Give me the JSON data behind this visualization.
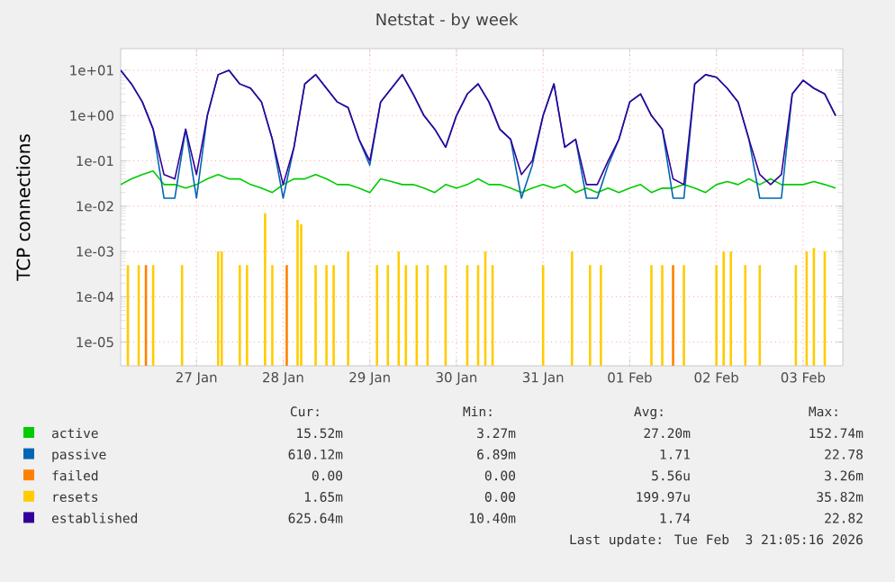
{
  "chart_data": {
    "type": "line",
    "title": "Netstat - by week",
    "ylabel": "TCP connections",
    "log": true,
    "grid": true,
    "legend": "bottom",
    "ylim": [
      3e-06,
      30
    ],
    "yticks": [
      {
        "value": 1e-05,
        "label": "1e-05"
      },
      {
        "value": 0.0001,
        "label": "1e-04"
      },
      {
        "value": 0.001,
        "label": "1e-03"
      },
      {
        "value": 0.01,
        "label": "1e-02"
      },
      {
        "value": 0.1,
        "label": "1e-01"
      },
      {
        "value": 1,
        "label": "1e+00"
      },
      {
        "value": 10,
        "label": "1e+01"
      }
    ],
    "xlim": [
      "2026-01-26T03:00",
      "2026-02-03T11:00"
    ],
    "xticks": [
      {
        "value": "2026-01-27T00:00",
        "label": "27 Jan"
      },
      {
        "value": "2026-01-28T00:00",
        "label": "28 Jan"
      },
      {
        "value": "2026-01-29T00:00",
        "label": "29 Jan"
      },
      {
        "value": "2026-01-30T00:00",
        "label": "30 Jan"
      },
      {
        "value": "2026-01-31T00:00",
        "label": "31 Jan"
      },
      {
        "value": "2026-02-01T00:00",
        "label": "01 Feb"
      },
      {
        "value": "2026-02-02T00:00",
        "label": "02 Feb"
      },
      {
        "value": "2026-02-03T00:00",
        "label": "03 Feb"
      }
    ],
    "x": [
      "2026-01-26T03:00",
      "2026-01-26T06:00",
      "2026-01-26T09:00",
      "2026-01-26T12:00",
      "2026-01-26T15:00",
      "2026-01-26T18:00",
      "2026-01-26T21:00",
      "2026-01-27T00:00",
      "2026-01-27T03:00",
      "2026-01-27T06:00",
      "2026-01-27T09:00",
      "2026-01-27T12:00",
      "2026-01-27T15:00",
      "2026-01-27T18:00",
      "2026-01-27T21:00",
      "2026-01-28T00:00",
      "2026-01-28T03:00",
      "2026-01-28T06:00",
      "2026-01-28T09:00",
      "2026-01-28T12:00",
      "2026-01-28T15:00",
      "2026-01-28T18:00",
      "2026-01-28T21:00",
      "2026-01-29T00:00",
      "2026-01-29T03:00",
      "2026-01-29T06:00",
      "2026-01-29T09:00",
      "2026-01-29T12:00",
      "2026-01-29T15:00",
      "2026-01-29T18:00",
      "2026-01-29T21:00",
      "2026-01-30T00:00",
      "2026-01-30T03:00",
      "2026-01-30T06:00",
      "2026-01-30T09:00",
      "2026-01-30T12:00",
      "2026-01-30T15:00",
      "2026-01-30T18:00",
      "2026-01-30T21:00",
      "2026-01-31T00:00",
      "2026-01-31T03:00",
      "2026-01-31T06:00",
      "2026-01-31T09:00",
      "2026-01-31T12:00",
      "2026-01-31T15:00",
      "2026-01-31T18:00",
      "2026-01-31T21:00",
      "2026-02-01T00:00",
      "2026-02-01T03:00",
      "2026-02-01T06:00",
      "2026-02-01T09:00",
      "2026-02-01T12:00",
      "2026-02-01T15:00",
      "2026-02-01T18:00",
      "2026-02-01T21:00",
      "2026-02-02T00:00",
      "2026-02-02T03:00",
      "2026-02-02T06:00",
      "2026-02-02T09:00",
      "2026-02-02T12:00",
      "2026-02-02T15:00",
      "2026-02-02T18:00",
      "2026-02-02T21:00",
      "2026-02-03T00:00",
      "2026-02-03T03:00",
      "2026-02-03T06:00",
      "2026-02-03T09:00"
    ],
    "series": [
      {
        "name": "active",
        "color": "#00cc00",
        "values": [
          0.03,
          0.04,
          0.05,
          0.06,
          0.03,
          0.03,
          0.025,
          0.03,
          0.04,
          0.05,
          0.04,
          0.04,
          0.03,
          0.025,
          0.02,
          0.03,
          0.04,
          0.04,
          0.05,
          0.04,
          0.03,
          0.03,
          0.025,
          0.02,
          0.04,
          0.035,
          0.03,
          0.03,
          0.025,
          0.02,
          0.03,
          0.025,
          0.03,
          0.04,
          0.03,
          0.03,
          0.025,
          0.02,
          0.025,
          0.03,
          0.025,
          0.03,
          0.02,
          0.025,
          0.02,
          0.025,
          0.02,
          0.025,
          0.03,
          0.02,
          0.025,
          0.025,
          0.03,
          0.025,
          0.02,
          0.03,
          0.035,
          0.03,
          0.04,
          0.03,
          0.04,
          0.03,
          0.03,
          0.03,
          0.035,
          0.03,
          0.025
        ]
      },
      {
        "name": "passive",
        "color": "#0066b3",
        "values": [
          10,
          5,
          2,
          0.5,
          0.015,
          0.015,
          0.5,
          0.015,
          1,
          8,
          10,
          5,
          4,
          2,
          0.3,
          0.015,
          0.2,
          5,
          8,
          4,
          2,
          1.5,
          0.3,
          0.08,
          2,
          4,
          8,
          3,
          1,
          0.5,
          0.2,
          1,
          3,
          5,
          2,
          0.5,
          0.3,
          0.015,
          0.08,
          1,
          5,
          0.2,
          0.3,
          0.015,
          0.015,
          0.08,
          0.3,
          2,
          3,
          1,
          0.5,
          0.015,
          0.015,
          5,
          8,
          7,
          4,
          2,
          0.3,
          0.015,
          0.015,
          0.015,
          3,
          6,
          4,
          3,
          1
        ]
      },
      {
        "name": "failed",
        "type": "bar",
        "color": "#ff8000",
        "x": [
          "2026-01-26T10:00",
          "2026-01-28T01:00",
          "2026-02-01T12:00"
        ],
        "values": [
          0.0005,
          0.0005,
          0.0005
        ]
      },
      {
        "name": "resets",
        "type": "bar",
        "color": "#ffcc00",
        "x": [
          "2026-01-26T05:00",
          "2026-01-26T08:00",
          "2026-01-26T12:00",
          "2026-01-26T20:00",
          "2026-01-27T06:00",
          "2026-01-27T07:00",
          "2026-01-27T12:00",
          "2026-01-27T14:00",
          "2026-01-27T19:00",
          "2026-01-27T21:00",
          "2026-01-28T04:00",
          "2026-01-28T05:00",
          "2026-01-28T09:00",
          "2026-01-28T12:00",
          "2026-01-28T14:00",
          "2026-01-28T18:00",
          "2026-01-29T02:00",
          "2026-01-29T05:00",
          "2026-01-29T08:00",
          "2026-01-29T10:00",
          "2026-01-29T13:00",
          "2026-01-29T16:00",
          "2026-01-29T21:00",
          "2026-01-30T03:00",
          "2026-01-30T06:00",
          "2026-01-30T08:00",
          "2026-01-30T10:00",
          "2026-01-31T00:00",
          "2026-01-31T08:00",
          "2026-01-31T13:00",
          "2026-01-31T16:00",
          "2026-02-01T06:00",
          "2026-02-01T09:00",
          "2026-02-01T15:00",
          "2026-02-02T00:00",
          "2026-02-02T02:00",
          "2026-02-02T04:00",
          "2026-02-02T08:00",
          "2026-02-02T12:00",
          "2026-02-02T22:00",
          "2026-02-03T01:00",
          "2026-02-03T03:00",
          "2026-02-03T06:00"
        ],
        "values": [
          0.0005,
          0.0005,
          0.0005,
          0.0005,
          0.001,
          0.001,
          0.0005,
          0.0005,
          0.007,
          0.0005,
          0.005,
          0.004,
          0.0005,
          0.0005,
          0.0005,
          0.001,
          0.0005,
          0.0005,
          0.001,
          0.0005,
          0.0005,
          0.0005,
          0.0005,
          0.0005,
          0.0005,
          0.001,
          0.0005,
          0.0005,
          0.001,
          0.0005,
          0.0005,
          0.0005,
          0.0005,
          0.0005,
          0.0005,
          0.001,
          0.001,
          0.0005,
          0.0005,
          0.0005,
          0.001,
          0.0012,
          0.001
        ]
      },
      {
        "name": "established",
        "color": "#330099",
        "values": [
          10,
          5,
          2,
          0.5,
          0.05,
          0.04,
          0.5,
          0.05,
          1,
          8,
          10,
          5,
          4,
          2,
          0.3,
          0.03,
          0.2,
          5,
          8,
          4,
          2,
          1.5,
          0.3,
          0.1,
          2,
          4,
          8,
          3,
          1,
          0.5,
          0.2,
          1,
          3,
          5,
          2,
          0.5,
          0.3,
          0.05,
          0.1,
          1,
          5,
          0.2,
          0.3,
          0.03,
          0.03,
          0.1,
          0.3,
          2,
          3,
          1,
          0.5,
          0.04,
          0.03,
          5,
          8,
          7,
          4,
          2,
          0.3,
          0.05,
          0.03,
          0.05,
          3,
          6,
          4,
          3,
          1
        ]
      }
    ],
    "annotations": [
      "Cur:",
      "Min:",
      "Avg:",
      "Max:",
      "15.52m",
      "3.27m",
      "27.20m",
      "152.74m",
      "610.12m",
      "6.89m",
      "1.71",
      "22.78",
      "0.00",
      "0.00",
      "5.56u",
      "3.26m",
      "1.65m",
      "0.00",
      "199.97u",
      "35.82m",
      "625.64m",
      "10.40m",
      "1.74",
      "22.82",
      "Last update: Tue Feb  3 21:05:16 2026"
    ]
  }
}
